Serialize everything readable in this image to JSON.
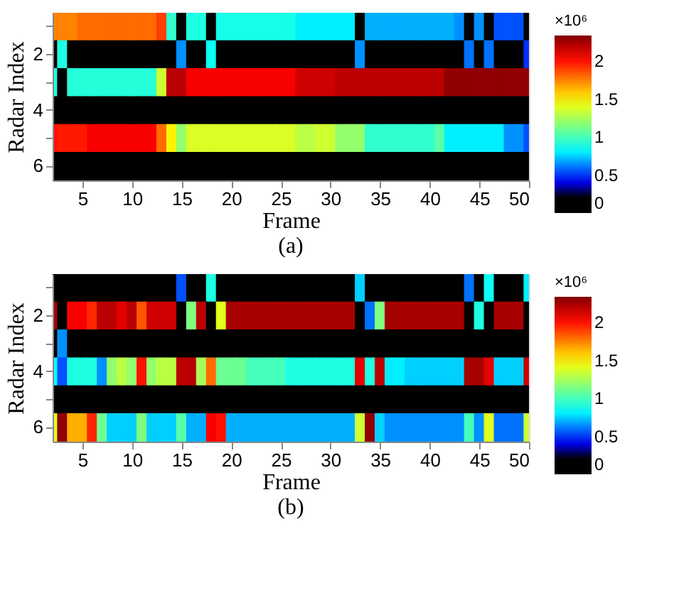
{
  "chart_data": [
    {
      "type": "heatmap",
      "title": "(a)",
      "xlabel": "Frame",
      "ylabel": "Radar Index",
      "clabel": "×10⁶",
      "x": [
        2,
        3,
        4,
        5,
        6,
        7,
        8,
        9,
        10,
        11,
        12,
        13,
        14,
        15,
        16,
        17,
        18,
        19,
        20,
        21,
        22,
        23,
        24,
        25,
        26,
        27,
        28,
        29,
        30,
        31,
        32,
        33,
        34,
        35,
        36,
        37,
        38,
        39,
        40,
        41,
        42,
        43,
        44,
        45,
        46,
        47,
        48,
        49,
        50
      ],
      "xlim": [
        2,
        50
      ],
      "xticks": [
        5,
        10,
        15,
        20,
        25,
        30,
        35,
        40,
        45,
        50
      ],
      "y_categories": [
        null,
        "2",
        null,
        "4",
        null,
        "6"
      ],
      "clim": [
        0,
        2.34
      ],
      "cticks": [
        0,
        0.5,
        1,
        1.5,
        2
      ],
      "cells": [
        [
          1.75,
          1.75,
          1.75,
          1.8,
          1.8,
          1.8,
          1.8,
          1.8,
          1.8,
          1.8,
          1.8,
          1.9,
          0.95,
          0,
          0.9,
          0.9,
          0,
          0.88,
          0.88,
          0.88,
          0.88,
          0.88,
          0.88,
          0.88,
          0.88,
          0.8,
          0.8,
          0.8,
          0.8,
          0.8,
          0.8,
          0,
          0.7,
          0.7,
          0.7,
          0.7,
          0.7,
          0.7,
          0.7,
          0.7,
          0.7,
          0.65,
          0,
          0.65,
          0,
          0.55,
          0.55,
          0.55,
          0
        ],
        [
          0,
          0.9,
          0,
          0,
          0,
          0,
          0,
          0,
          0,
          0,
          0,
          0,
          0,
          0.65,
          0,
          0,
          0.85,
          0,
          0,
          0,
          0,
          0,
          0,
          0,
          0,
          0,
          0,
          0,
          0,
          0,
          0,
          0.65,
          0,
          0,
          0,
          0,
          0,
          0,
          0,
          0,
          0,
          0,
          0.6,
          0,
          0.6,
          0,
          0,
          0,
          0.5
        ],
        [
          0.9,
          0,
          0.92,
          0.92,
          0.92,
          0.92,
          0.92,
          0.92,
          0.92,
          0.92,
          0.92,
          1.35,
          2.2,
          2.2,
          2.05,
          2.05,
          2.05,
          2.05,
          2.05,
          2.05,
          2.05,
          2.05,
          2.05,
          2.05,
          2.05,
          2.15,
          2.15,
          2.15,
          2.15,
          2.2,
          2.2,
          2.2,
          2.2,
          2.2,
          2.2,
          2.2,
          2.2,
          2.2,
          2.2,
          2.2,
          2.3,
          2.3,
          2.3,
          2.3,
          2.3,
          2.3,
          2.3,
          2.3,
          2.3
        ],
        [
          0,
          0,
          0,
          0,
          0,
          0,
          0,
          0,
          0,
          0,
          0,
          0,
          0,
          0,
          0,
          0,
          0,
          0,
          0,
          0,
          0,
          0,
          0,
          0,
          0,
          0,
          0,
          0,
          0,
          0,
          0,
          0,
          0,
          0,
          0,
          0,
          0,
          0,
          0,
          0,
          0,
          0,
          0,
          0,
          0,
          0,
          0,
          0,
          0
        ],
        [
          2.0,
          1.98,
          1.98,
          1.98,
          2.05,
          2.05,
          2.05,
          2.05,
          2.05,
          2.05,
          2.05,
          1.8,
          1.5,
          1.2,
          1.38,
          1.38,
          1.38,
          1.38,
          1.38,
          1.38,
          1.38,
          1.38,
          1.38,
          1.38,
          1.38,
          1.3,
          1.3,
          1.35,
          1.35,
          1.2,
          1.2,
          1.2,
          0.95,
          0.95,
          0.95,
          0.95,
          0.95,
          0.95,
          0.95,
          1.05,
          0.8,
          0.8,
          0.8,
          0.8,
          0.8,
          0.8,
          0.65,
          0.65,
          0.55
        ],
        [
          0,
          0,
          0,
          0,
          0,
          0,
          0,
          0,
          0,
          0,
          0,
          0,
          0,
          0,
          0,
          0,
          0,
          0,
          0,
          0,
          0,
          0,
          0,
          0,
          0,
          0,
          0,
          0,
          0,
          0,
          0,
          0,
          0,
          0,
          0,
          0,
          0,
          0,
          0,
          0,
          0,
          0,
          0,
          0,
          0,
          0,
          0,
          0,
          0
        ]
      ]
    },
    {
      "type": "heatmap",
      "title": "(b)",
      "xlabel": "Frame",
      "ylabel": "Radar Index",
      "clabel": "×10⁶",
      "x": [
        2,
        3,
        4,
        5,
        6,
        7,
        8,
        9,
        10,
        11,
        12,
        13,
        14,
        15,
        16,
        17,
        18,
        19,
        20,
        21,
        22,
        23,
        24,
        25,
        26,
        27,
        28,
        29,
        30,
        31,
        32,
        33,
        34,
        35,
        36,
        37,
        38,
        39,
        40,
        41,
        42,
        43,
        44,
        45,
        46,
        47,
        48,
        49,
        50
      ],
      "xlim": [
        2,
        50
      ],
      "xticks": [
        5,
        10,
        15,
        20,
        25,
        30,
        35,
        40,
        45,
        50
      ],
      "y_categories": [
        null,
        "2",
        null,
        "4",
        null,
        "6"
      ],
      "clim": [
        0,
        2.34
      ],
      "cticks": [
        0,
        0.5,
        1,
        1.5,
        2
      ],
      "cells": [
        [
          0,
          0,
          0,
          0,
          0,
          0,
          0,
          0,
          0,
          0,
          0,
          0,
          0,
          0.55,
          0,
          0,
          0.9,
          0,
          0,
          0,
          0,
          0,
          0,
          0,
          0,
          0,
          0,
          0,
          0,
          0,
          0,
          0.75,
          0,
          0,
          0,
          0,
          0,
          0,
          0,
          0,
          0,
          0,
          0.6,
          0,
          0.85,
          0,
          0,
          0,
          0.8
        ],
        [
          2.25,
          0,
          2.05,
          2.05,
          1.95,
          2.2,
          2.2,
          2.1,
          2.2,
          1.85,
          2.15,
          2.15,
          2.15,
          0,
          1.15,
          2.2,
          0,
          1.4,
          2.25,
          2.25,
          2.25,
          2.25,
          2.25,
          2.25,
          2.25,
          2.25,
          2.25,
          2.25,
          2.25,
          2.25,
          2.25,
          0,
          0.6,
          1.15,
          2.25,
          2.25,
          2.25,
          2.25,
          2.25,
          2.25,
          2.25,
          2.25,
          0,
          0.9,
          0,
          2.25,
          2.25,
          2.25,
          0
        ],
        [
          0,
          0.65,
          0,
          0,
          0,
          0,
          0,
          0,
          0,
          0,
          0,
          0,
          0,
          0,
          0,
          0,
          0,
          0,
          0,
          0,
          0,
          0,
          0,
          0,
          0,
          0,
          0,
          0,
          0,
          0,
          0,
          0,
          0,
          0,
          0,
          0,
          0,
          0,
          0,
          0,
          0,
          0,
          0,
          0,
          0,
          0,
          0,
          0,
          0
        ],
        [
          0.85,
          0.55,
          0.9,
          0.9,
          0.9,
          0.65,
          1.2,
          1.3,
          1.2,
          2.0,
          1.2,
          1.3,
          1.3,
          2.2,
          2.2,
          1.25,
          1.8,
          1.1,
          1.1,
          1.1,
          1.0,
          1.0,
          1.0,
          1.0,
          0.9,
          0.9,
          0.9,
          0.9,
          0.9,
          0.9,
          0.9,
          2.1,
          0.9,
          2.2,
          0.8,
          0.8,
          0.75,
          0.75,
          0.75,
          0.75,
          0.75,
          0.75,
          2.25,
          2.25,
          2.1,
          0.75,
          0.75,
          0.75,
          2.15
        ],
        [
          0,
          0,
          0,
          0,
          0,
          0,
          0,
          0,
          0,
          0,
          0,
          0,
          0,
          0,
          0,
          0,
          0,
          0,
          0,
          0,
          0,
          0,
          0,
          0,
          0,
          0,
          0,
          0,
          0,
          0,
          0,
          0,
          0,
          0,
          0,
          0,
          0,
          0,
          0,
          0,
          0,
          0,
          0,
          0,
          0,
          0,
          0,
          0,
          0
        ],
        [
          1.4,
          2.3,
          1.65,
          1.65,
          1.95,
          1.1,
          0.75,
          0.75,
          0.75,
          1.15,
          0.75,
          0.75,
          0.75,
          1.05,
          0.7,
          0.7,
          2.05,
          2.0,
          0.7,
          0.7,
          0.7,
          0.7,
          0.7,
          0.7,
          0.7,
          0.7,
          0.7,
          0.7,
          0.7,
          0.7,
          0.7,
          1.35,
          2.3,
          0.75,
          0.65,
          0.65,
          0.65,
          0.65,
          0.65,
          0.65,
          0.65,
          0.65,
          1.0,
          0.65,
          1.4,
          0.6,
          0.6,
          0.6,
          1.35
        ]
      ]
    }
  ]
}
